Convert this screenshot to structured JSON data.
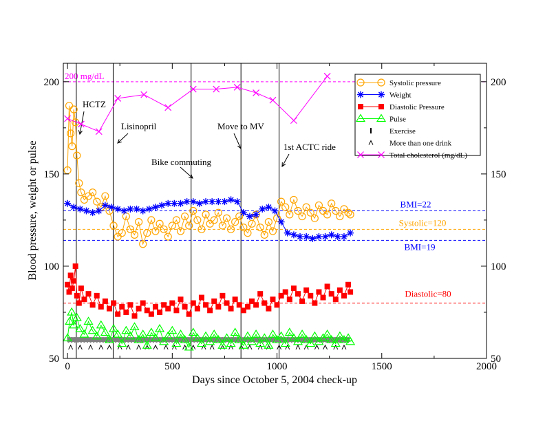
{
  "chart_data": {
    "type": "scatter",
    "title": "",
    "xlabel": "Days since October 5, 2004 check-up",
    "ylabel": "Blood pressure, weight or pulse",
    "xlim": [
      -20,
      2000
    ],
    "ylim": [
      50,
      210
    ],
    "x_ticks": [
      0,
      500,
      1000,
      1500,
      2000
    ],
    "y_ticks": [
      50,
      100,
      150,
      200
    ],
    "y_ticks_right": [
      50,
      100,
      150,
      200
    ],
    "grid": false,
    "legend_position": "top-right",
    "colors": {
      "systolic": "#FFA500",
      "weight": "#0000FF",
      "diastolic": "#FF0000",
      "pulse": "#00FF00",
      "exercise": "#808080",
      "drink": "#000000",
      "cholesterol": "#FF00FF"
    },
    "legend": [
      {
        "key": "systolic",
        "label": "Systolic pressure",
        "marker": "circle-line"
      },
      {
        "key": "weight",
        "label": "Weight",
        "marker": "star-line"
      },
      {
        "key": "diastolic",
        "label": "Diastolic Pressure",
        "marker": "square-line"
      },
      {
        "key": "pulse",
        "label": "Pulse",
        "marker": "triangle-line"
      },
      {
        "key": "exercise",
        "label": "Exercise",
        "marker": "bar"
      },
      {
        "key": "drink",
        "label": "More than one drink",
        "marker": "caret"
      },
      {
        "key": "cholesterol",
        "label": "Total cholesterol (mg/dL)",
        "marker": "x-line"
      }
    ],
    "reference_lines": [
      {
        "key": "cholesterol",
        "label": "200 mg/dL",
        "y": 200
      },
      {
        "key": "weight",
        "label": "BMI=22",
        "y": 130
      },
      {
        "key": "systolic",
        "label": "Systolic=120",
        "y": 120
      },
      {
        "key": "weight",
        "label": "BMI=19",
        "y": 114
      },
      {
        "key": "diastolic",
        "label": "Diastolic=80",
        "y": 80
      }
    ],
    "events": [
      {
        "label": "HCTZ",
        "x": 42
      },
      {
        "label": "Lisinopril",
        "x": 218
      },
      {
        "label": "Bike commuting",
        "x": 590
      },
      {
        "label": "Move to MV",
        "x": 828
      },
      {
        "label": "1st ACTC ride",
        "x": 1010
      }
    ],
    "series": [
      {
        "key": "cholesterol",
        "name": "Total cholesterol (mg/dL)",
        "x": [
          0,
          65,
          150,
          240,
          365,
          480,
          600,
          710,
          810,
          900,
          980,
          1080,
          1240
        ],
        "y": [
          180,
          177,
          173,
          191,
          193,
          186,
          196,
          196,
          197,
          194,
          190,
          179,
          203
        ]
      },
      {
        "key": "weight",
        "name": "Weight",
        "x": [
          0,
          30,
          60,
          90,
          120,
          150,
          180,
          210,
          240,
          270,
          300,
          330,
          360,
          390,
          420,
          450,
          480,
          510,
          540,
          570,
          600,
          630,
          660,
          690,
          720,
          750,
          780,
          810,
          840,
          870,
          900,
          930,
          960,
          990,
          1020,
          1050,
          1080,
          1110,
          1140,
          1170,
          1200,
          1230,
          1260,
          1290,
          1320,
          1350
        ],
        "y": [
          134,
          132,
          131,
          130,
          129,
          130,
          133,
          132,
          131,
          130,
          131,
          131,
          130,
          131,
          132,
          133,
          134,
          134,
          134,
          135,
          135,
          134,
          135,
          135,
          135,
          135,
          136,
          135,
          129,
          127,
          128,
          131,
          132,
          130,
          124,
          118,
          117,
          116,
          116,
          115,
          116,
          116,
          117,
          116,
          116,
          118
        ]
      },
      {
        "key": "systolic",
        "name": "Systolic pressure",
        "x": [
          0,
          8,
          15,
          22,
          30,
          38,
          45,
          55,
          65,
          80,
          100,
          120,
          140,
          160,
          180,
          200,
          220,
          240,
          260,
          280,
          300,
          320,
          340,
          360,
          380,
          400,
          420,
          440,
          460,
          480,
          500,
          520,
          540,
          560,
          580,
          600,
          620,
          640,
          660,
          680,
          700,
          720,
          740,
          760,
          780,
          800,
          820,
          840,
          860,
          880,
          900,
          920,
          940,
          960,
          980,
          1000,
          1020,
          1040,
          1060,
          1080,
          1100,
          1120,
          1140,
          1160,
          1180,
          1200,
          1220,
          1240,
          1260,
          1280,
          1300,
          1320,
          1340,
          1350
        ],
        "y": [
          152,
          187,
          172,
          165,
          185,
          178,
          160,
          145,
          140,
          136,
          138,
          140,
          135,
          132,
          138,
          130,
          122,
          116,
          118,
          127,
          120,
          117,
          124,
          112,
          118,
          125,
          119,
          123,
          120,
          116,
          122,
          125,
          119,
          127,
          122,
          130,
          125,
          120,
          128,
          123,
          125,
          129,
          122,
          126,
          120,
          124,
          127,
          121,
          118,
          123,
          128,
          121,
          117,
          124,
          119,
          126,
          135,
          132,
          128,
          136,
          130,
          127,
          132,
          129,
          126,
          133,
          130,
          128,
          134,
          130,
          127,
          131,
          129,
          128
        ]
      },
      {
        "key": "diastolic",
        "name": "Diastolic Pressure",
        "x": [
          0,
          8,
          15,
          22,
          30,
          38,
          45,
          55,
          65,
          80,
          100,
          120,
          140,
          160,
          180,
          200,
          220,
          240,
          260,
          280,
          300,
          320,
          340,
          360,
          380,
          400,
          420,
          440,
          460,
          480,
          500,
          520,
          540,
          560,
          580,
          600,
          620,
          640,
          660,
          680,
          700,
          720,
          740,
          760,
          780,
          800,
          820,
          840,
          860,
          880,
          900,
          920,
          940,
          960,
          980,
          1000,
          1020,
          1040,
          1060,
          1080,
          1100,
          1120,
          1140,
          1160,
          1180,
          1200,
          1220,
          1240,
          1260,
          1280,
          1300,
          1320,
          1340,
          1350
        ],
        "y": [
          90,
          86,
          95,
          88,
          92,
          100,
          84,
          80,
          88,
          82,
          85,
          79,
          84,
          78,
          81,
          77,
          80,
          74,
          78,
          75,
          79,
          73,
          77,
          80,
          76,
          74,
          78,
          75,
          79,
          77,
          80,
          76,
          82,
          78,
          74,
          80,
          77,
          83,
          79,
          76,
          81,
          78,
          84,
          80,
          77,
          82,
          79,
          76,
          78,
          81,
          79,
          85,
          80,
          77,
          82,
          79,
          84,
          86,
          82,
          88,
          85,
          81,
          87,
          84,
          80,
          86,
          83,
          89,
          85,
          82,
          87,
          84,
          90,
          86
        ]
      },
      {
        "key": "pulse",
        "name": "Pulse",
        "x": [
          0,
          10,
          20,
          30,
          45,
          60,
          80,
          100,
          120,
          140,
          160,
          180,
          200,
          220,
          240,
          260,
          280,
          300,
          320,
          340,
          360,
          380,
          400,
          420,
          440,
          460,
          480,
          500,
          520,
          540,
          560,
          580,
          600,
          620,
          640,
          660,
          680,
          700,
          720,
          740,
          760,
          780,
          800,
          820,
          840,
          860,
          880,
          900,
          920,
          940,
          960,
          980,
          1000,
          1020,
          1040,
          1060,
          1080,
          1100,
          1120,
          1140,
          1160,
          1180,
          1200,
          1220,
          1240,
          1260,
          1280,
          1300,
          1320,
          1340,
          1350
        ],
        "y": [
          61,
          70,
          75,
          68,
          72,
          66,
          63,
          70,
          65,
          62,
          68,
          64,
          60,
          66,
          63,
          58,
          65,
          62,
          67,
          60,
          63,
          57,
          64,
          61,
          66,
          59,
          62,
          65,
          58,
          63,
          60,
          56,
          64,
          61,
          58,
          62,
          59,
          63,
          60,
          57,
          61,
          58,
          64,
          60,
          57,
          62,
          59,
          63,
          58,
          61,
          57,
          63,
          60,
          62,
          58,
          64,
          61,
          59,
          63,
          60,
          58,
          62,
          59,
          61,
          63,
          60,
          58,
          62,
          60,
          61,
          59
        ]
      },
      {
        "key": "exercise",
        "name": "Exercise",
        "x": [
          5,
          20,
          35,
          50,
          65,
          80,
          95,
          110,
          125,
          140,
          155,
          170,
          185,
          200,
          215,
          230,
          245,
          260,
          275,
          290,
          305,
          320,
          335,
          350,
          365,
          380,
          395,
          410,
          425,
          440,
          455,
          470,
          485,
          500,
          515,
          530,
          545,
          560,
          575,
          590,
          605,
          620,
          635,
          650,
          665,
          680,
          695,
          710,
          725,
          740,
          755,
          770,
          785,
          800,
          815,
          830,
          845,
          860,
          875,
          890,
          905,
          920,
          935,
          950,
          965,
          980,
          995,
          1010,
          1025,
          1040,
          1055,
          1070,
          1085,
          1100,
          1115,
          1130,
          1145,
          1160,
          1175,
          1190,
          1205,
          1220,
          1235,
          1250,
          1265,
          1280,
          1295,
          1310,
          1325,
          1340
        ],
        "y": 60
      },
      {
        "key": "drink",
        "name": "More than one drink",
        "x": [
          15,
          60,
          110,
          160,
          200,
          250,
          290,
          340,
          380,
          420,
          470,
          510,
          560,
          600,
          650,
          690,
          740,
          780,
          830,
          870,
          920,
          960,
          1010,
          1050,
          1100,
          1140,
          1190,
          1230,
          1280,
          1320
        ],
        "y": 56
      }
    ]
  }
}
